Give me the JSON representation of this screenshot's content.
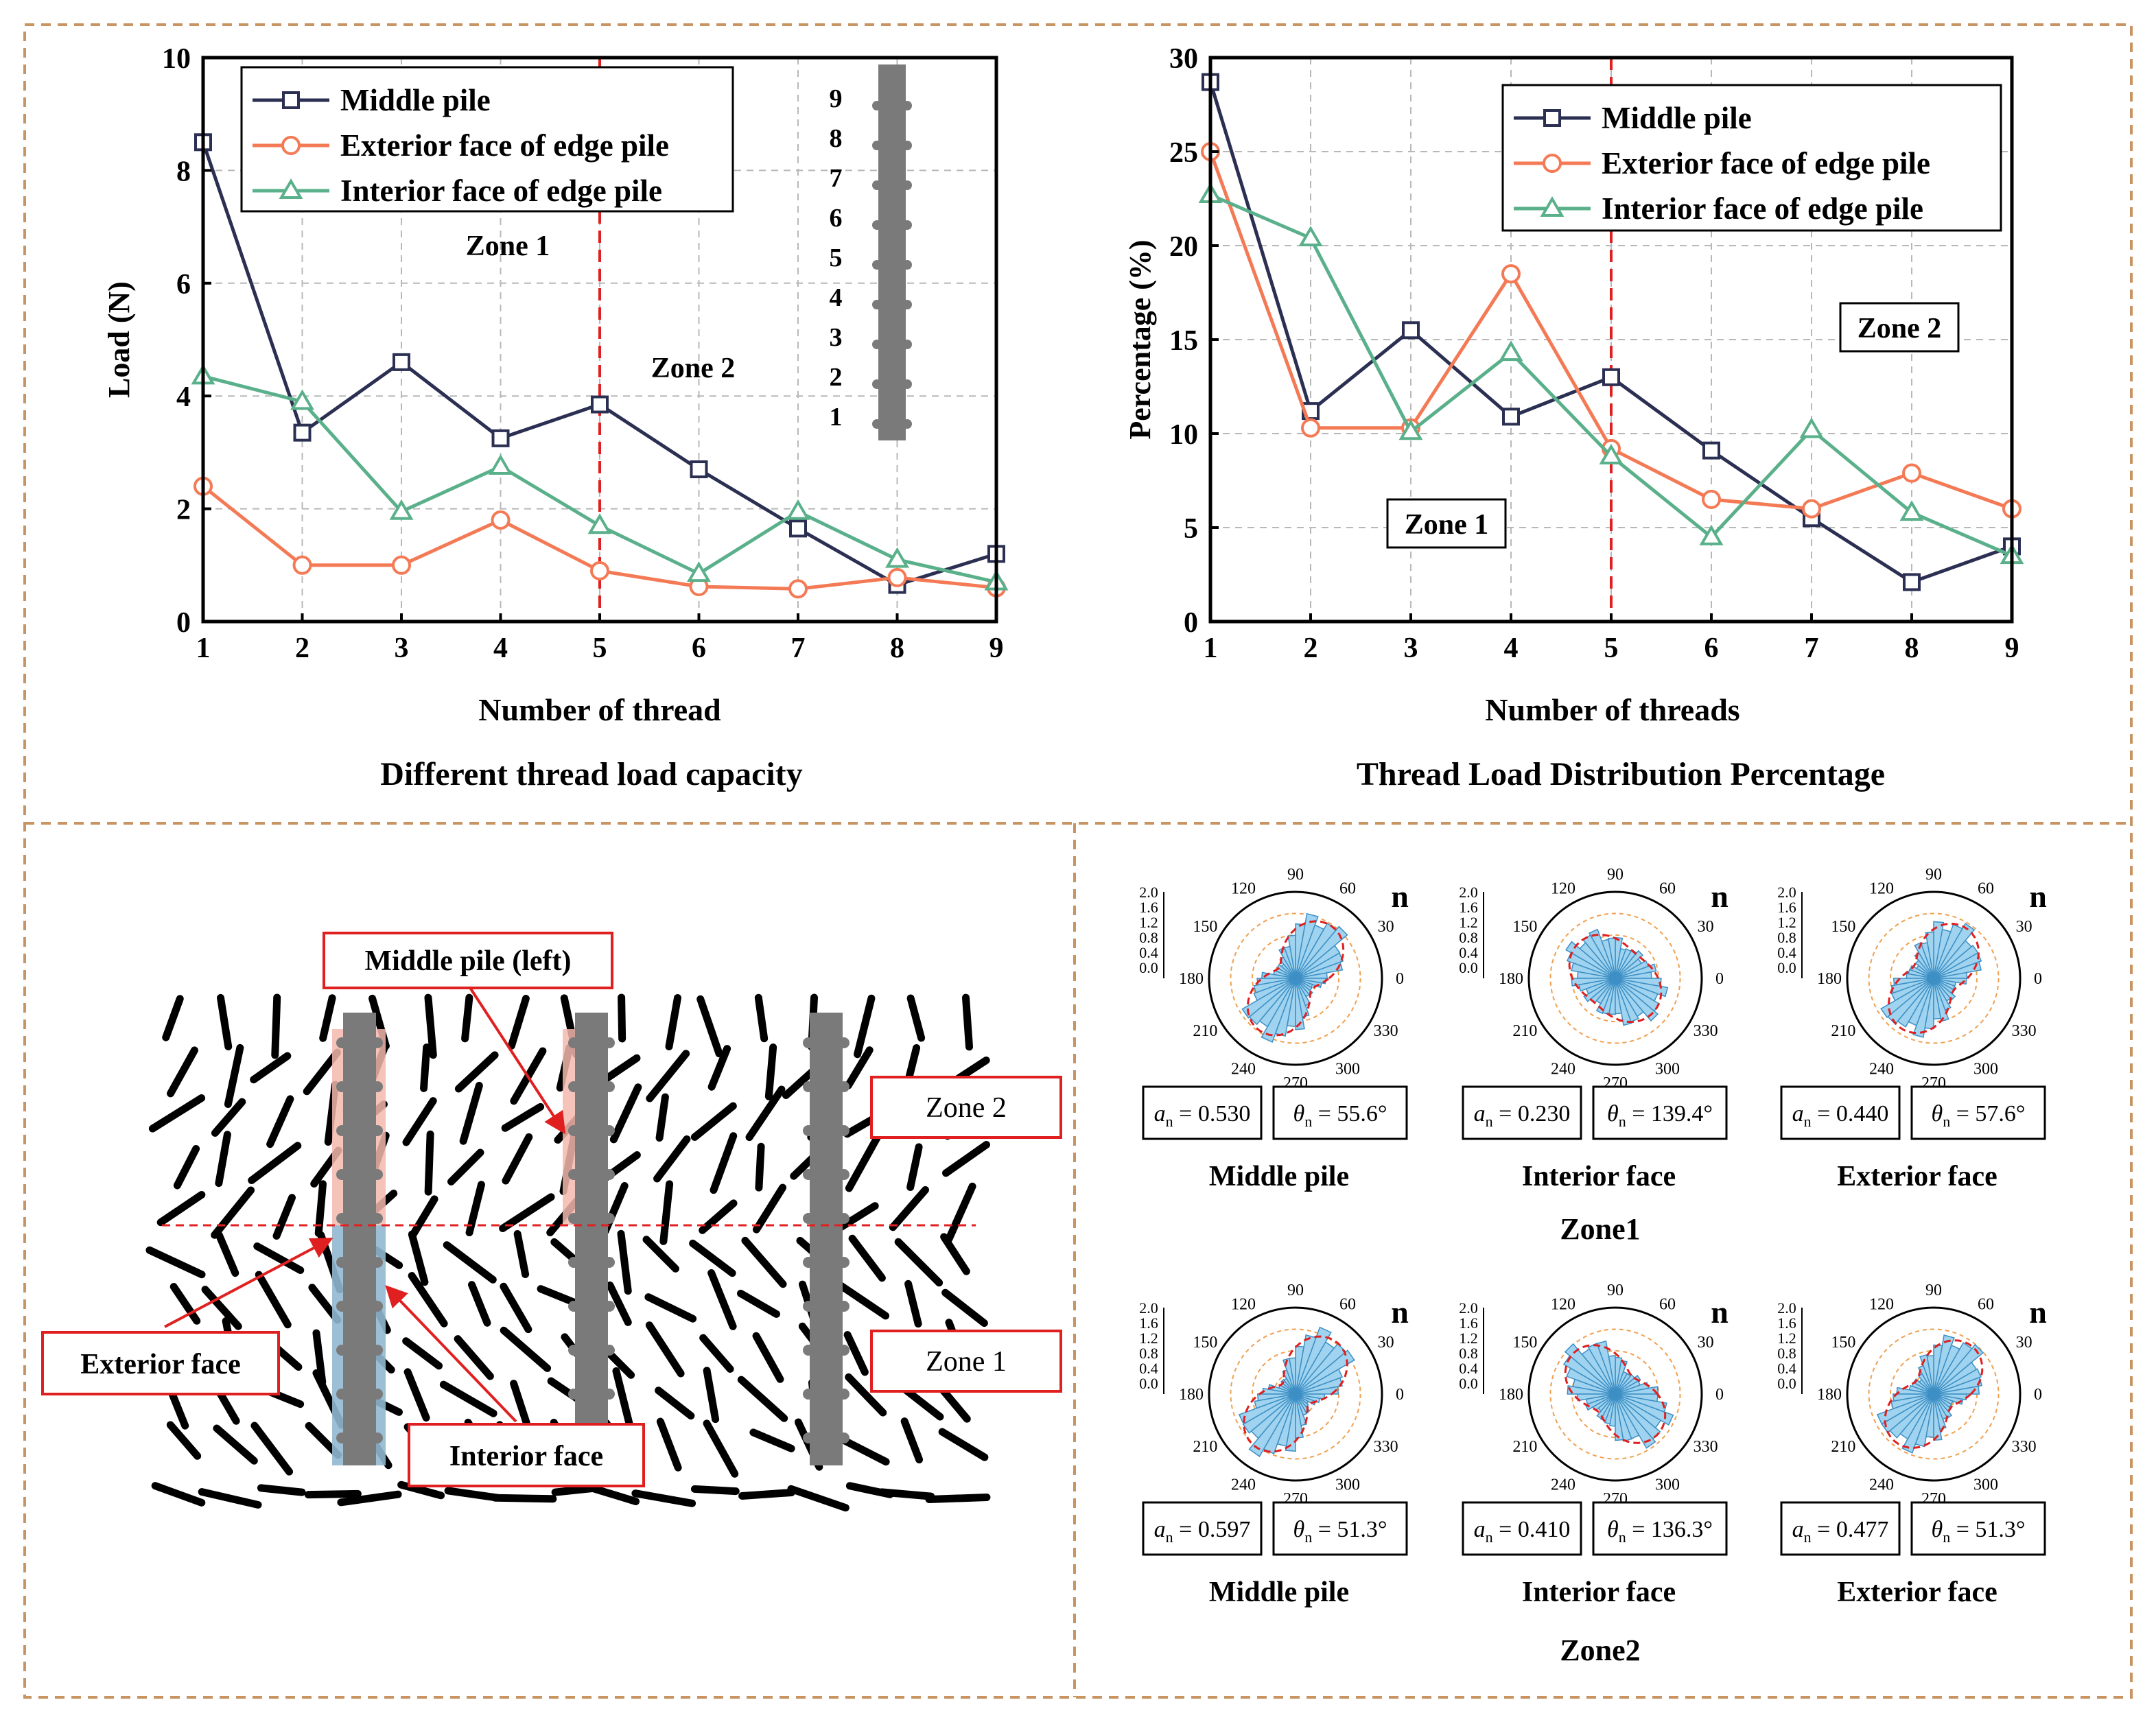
{
  "colors": {
    "middle": "#2b2f52",
    "exterior": "#f47a55",
    "interior": "#5ab08a",
    "zone_line": "#e02020",
    "panel_border": "#c79462",
    "pile": "#7a7a7a",
    "rose_fill": "#9fd3ef",
    "rose_stroke": "#3d8fc4",
    "callout": "#e02020"
  },
  "chart_data": [
    {
      "id": "load",
      "type": "line",
      "caption": "Different thread load capacity",
      "title": "",
      "xlabel": "Number of thread",
      "ylabel": "Load (N)",
      "x": [
        1,
        2,
        3,
        4,
        5,
        6,
        7,
        8,
        9
      ],
      "xlim": [
        1,
        9
      ],
      "ylim": [
        0,
        10
      ],
      "yticks": [
        "0",
        "2",
        "4",
        "6",
        "8",
        "10"
      ],
      "grid": true,
      "legend_position": "top-left",
      "series": [
        {
          "name": "Middle pile",
          "key": "middle",
          "marker": "square",
          "values": [
            8.5,
            3.35,
            4.6,
            3.25,
            3.85,
            2.7,
            1.65,
            0.65,
            1.2
          ]
        },
        {
          "name": "Exterior face of edge pile",
          "key": "exterior",
          "marker": "circle",
          "values": [
            2.4,
            1.0,
            1.0,
            1.8,
            0.9,
            0.62,
            0.58,
            0.78,
            0.6
          ]
        },
        {
          "name": "Interior face of edge pile",
          "key": "interior",
          "marker": "triangle",
          "values": [
            4.35,
            3.9,
            1.95,
            2.75,
            1.7,
            0.85,
            1.95,
            1.1,
            0.7
          ]
        }
      ],
      "zone_divider_x": 5,
      "annotations": [
        "Zone 1",
        "Zone 2"
      ],
      "inset_thread_numbers": [
        "9",
        "8",
        "7",
        "6",
        "5",
        "4",
        "3",
        "2",
        "1"
      ]
    },
    {
      "id": "percent",
      "type": "line",
      "caption": "Thread Load Distribution Percentage",
      "title": "",
      "xlabel": "Number of threads",
      "ylabel": "Percentage (%)",
      "x": [
        1,
        2,
        3,
        4,
        5,
        6,
        7,
        8,
        9
      ],
      "xlim": [
        1,
        9
      ],
      "ylim": [
        0,
        30
      ],
      "yticks": [
        "0",
        "5",
        "10",
        "15",
        "20",
        "25",
        "30"
      ],
      "grid": true,
      "legend_position": "top-right",
      "series": [
        {
          "name": "Middle pile",
          "key": "middle",
          "marker": "square",
          "values": [
            28.7,
            11.2,
            15.5,
            10.9,
            13.0,
            9.1,
            5.5,
            2.1,
            4.0
          ]
        },
        {
          "name": "Exterior face of edge pile",
          "key": "exterior",
          "marker": "circle",
          "values": [
            25.0,
            10.3,
            10.3,
            18.5,
            9.2,
            6.5,
            6.0,
            7.9,
            6.0
          ]
        },
        {
          "name": "Interior face of edge pile",
          "key": "interior",
          "marker": "triangle",
          "values": [
            22.7,
            20.4,
            10.1,
            14.3,
            8.8,
            4.5,
            10.2,
            5.8,
            3.5
          ]
        }
      ],
      "zone_divider_x": 5,
      "annotations": [
        "Zone 1",
        "Zone 2"
      ]
    }
  ],
  "particle_panel": {
    "labels": {
      "middle_pile_left": "Middle pile (left)",
      "zone2": "Zone 2",
      "zone1": "Zone 1",
      "exterior_face": "Exterior face",
      "interior_face": "Interior face"
    }
  },
  "rose_panel": {
    "n_label": "n",
    "tick_values": [
      "2.0",
      "1.6",
      "1.2",
      "0.8",
      "0.4",
      "0.0"
    ],
    "angle_labels": [
      "90",
      "60",
      "30",
      "0",
      "330",
      "300",
      "270",
      "240",
      "210",
      "180",
      "150",
      "120"
    ],
    "zones": [
      {
        "name": "Zone1",
        "plots": [
          {
            "title": "Middle pile",
            "a_symbol": "a",
            "a_sub": "n",
            "a_value": "= 0.530",
            "theta_symbol": "θ",
            "theta_sub": "n",
            "theta_value": "= 55.6°",
            "an": 0.53,
            "theta_deg": 55.6
          },
          {
            "title": "Interior face",
            "a_symbol": "a",
            "a_sub": "n",
            "a_value": "= 0.230",
            "theta_symbol": "θ",
            "theta_sub": "n",
            "theta_value": "= 139.4°",
            "an": 0.23,
            "theta_deg": 139.4
          },
          {
            "title": "Exterior face",
            "a_symbol": "a",
            "a_sub": "n",
            "a_value": "= 0.440",
            "theta_symbol": "θ",
            "theta_sub": "n",
            "theta_value": "= 57.6°",
            "an": 0.44,
            "theta_deg": 57.6
          }
        ]
      },
      {
        "name": "Zone2",
        "plots": [
          {
            "title": "Middle pile",
            "a_symbol": "a",
            "a_sub": "n",
            "a_value": "= 0.597",
            "theta_symbol": "θ",
            "theta_sub": "n",
            "theta_value": "= 51.3°",
            "an": 0.597,
            "theta_deg": 51.3
          },
          {
            "title": "Interior face",
            "a_symbol": "a",
            "a_sub": "n",
            "a_value": "= 0.410",
            "theta_symbol": "θ",
            "theta_sub": "n",
            "theta_value": "= 136.3°",
            "an": 0.41,
            "theta_deg": 136.3
          },
          {
            "title": "Exterior face",
            "a_symbol": "a",
            "a_sub": "n",
            "a_value": "= 0.477",
            "theta_symbol": "θ",
            "theta_sub": "n",
            "theta_value": "= 51.3°",
            "an": 0.477,
            "theta_deg": 51.3
          }
        ]
      }
    ]
  }
}
